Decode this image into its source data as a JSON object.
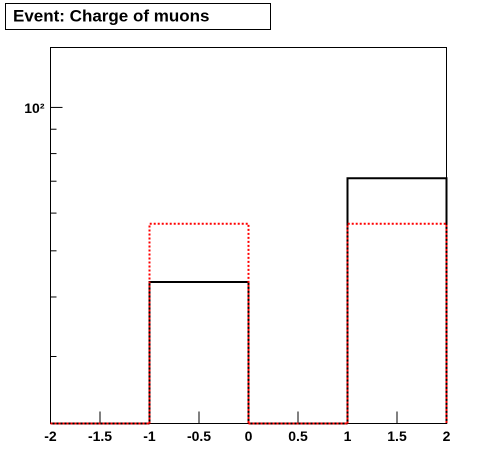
{
  "chart_data": {
    "type": "histogram",
    "title": "Event: Charge of muons",
    "bins": [
      -2,
      -1,
      0,
      1,
      2
    ],
    "series": [
      {
        "color": "#000000",
        "dash": "solid",
        "values": [
          0,
          43,
          0,
          71
        ]
      },
      {
        "color": "#ff0000",
        "dash": "dotted",
        "values": [
          0,
          57,
          0,
          57
        ]
      }
    ],
    "log_y": true,
    "xlim": [
      -2,
      2
    ],
    "xticks": [
      -2,
      -1.5,
      -1,
      -0.5,
      0,
      0.5,
      1,
      1.5,
      2
    ],
    "ylim": [
      21.7,
      133.6
    ],
    "yticks": [
      {
        "value": 100,
        "label": "10²"
      }
    ],
    "yminor": [
      30,
      40,
      50,
      60,
      70,
      80,
      90
    ]
  }
}
